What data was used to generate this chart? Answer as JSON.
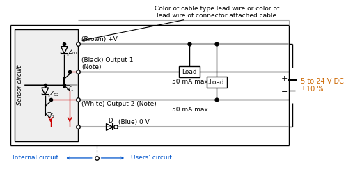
{
  "bg_color": "#ffffff",
  "line_color": "#000000",
  "red_color": "#cc0000",
  "gray_color": "#aaaaaa",
  "orange_color": "#cc6600",
  "annotation_text": "Color of cable type lead wire or color of\nlead wire of connector attached cable",
  "label_brown": "(Brown) +V",
  "label_black": "(Black) Output 1\n(Note)",
  "label_white": "(White) Output 2 (Note)",
  "label_blue": "(Blue) 0 V",
  "label_50ma_1": "50 mA max.",
  "label_50ma_2": "50 mA max.",
  "label_internal": "Internal circuit",
  "label_users": "Users’ circuit",
  "label_voltage": "5 to 24 V DC\n±10 %"
}
